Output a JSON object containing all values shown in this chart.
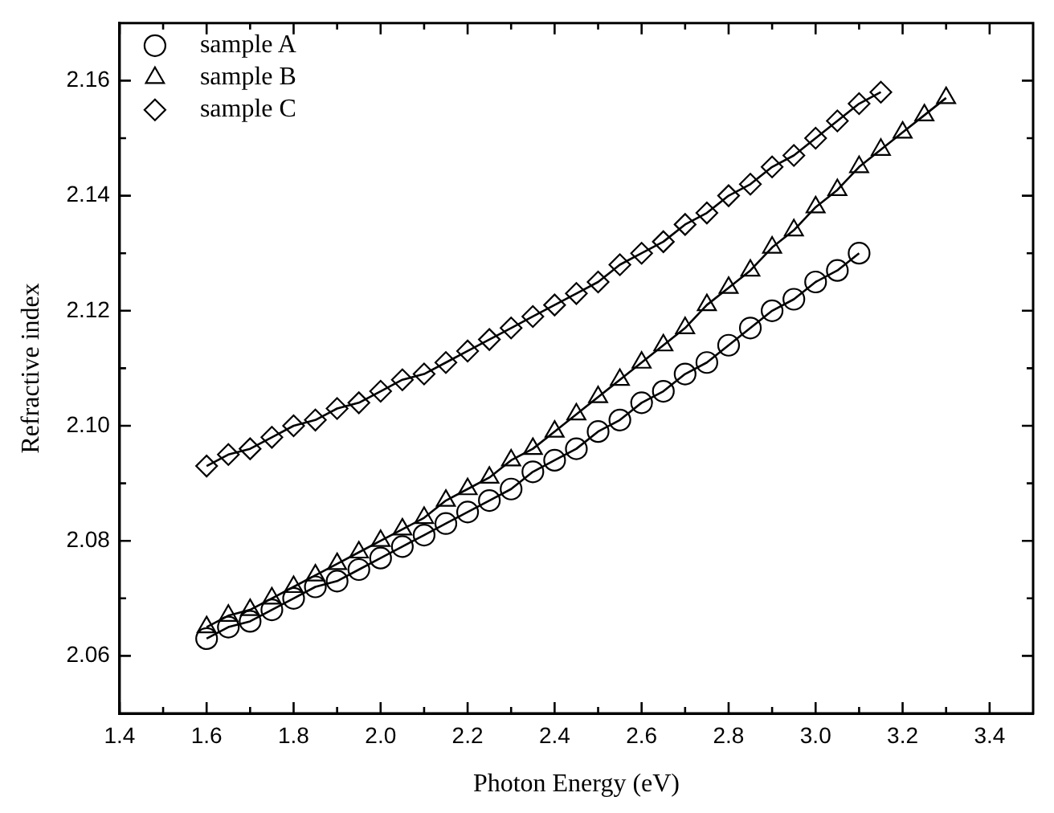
{
  "chart_data": {
    "type": "line",
    "xlabel": "Photon Energy (eV)",
    "ylabel": "Refractive index",
    "xlim": [
      1.4,
      3.5
    ],
    "xticks": [
      1.4,
      {
        "value": 1.5,
        "label": null
      },
      1.6,
      {
        "value": 1.7,
        "label": null
      },
      1.8,
      {
        "value": 1.9,
        "label": null
      },
      "2.0",
      {
        "value": 2.1,
        "label": null
      },
      2.2,
      {
        "value": 2.3,
        "label": null
      },
      2.4,
      {
        "value": 2.5,
        "label": null
      },
      2.6,
      {
        "value": 2.7,
        "label": null
      },
      2.8,
      {
        "value": 2.9,
        "label": null
      },
      "3.0",
      {
        "value": 3.1,
        "label": null
      },
      3.2,
      {
        "value": 3.3,
        "label": null
      },
      3.4
    ],
    "ylim": [
      2.05,
      2.17
    ],
    "yticks": [
      {
        "value": 2.06,
        "label": "2.06"
      },
      {
        "value": 2.07,
        "label": null
      },
      {
        "value": 2.08,
        "label": "2.08"
      },
      {
        "value": 2.09,
        "label": null
      },
      {
        "value": 2.1,
        "label": "2.10"
      },
      {
        "value": 2.11,
        "label": null
      },
      {
        "value": 2.12,
        "label": "2.12"
      },
      {
        "value": 2.13,
        "label": null
      },
      {
        "value": 2.14,
        "label": "2.14"
      },
      {
        "value": 2.15,
        "label": null
      },
      {
        "value": 2.16,
        "label": "2.16"
      }
    ],
    "grid": false,
    "legend": "top left",
    "line_style": "solid",
    "series": [
      {
        "name": "sample A",
        "color": "#000000",
        "marker": "circle",
        "x": [
          1.6,
          1.65,
          1.7,
          1.75,
          1.8,
          1.85,
          1.9,
          1.95,
          2.0,
          2.05,
          2.1,
          2.15,
          2.2,
          2.25,
          2.3,
          2.35,
          2.4,
          2.45,
          2.5,
          2.55,
          2.6,
          2.65,
          2.7,
          2.75,
          2.8,
          2.85,
          2.9,
          2.95,
          3.0,
          3.05,
          3.1
        ],
        "values": [
          2.063,
          2.065,
          2.066,
          2.068,
          2.07,
          2.072,
          2.073,
          2.075,
          2.077,
          2.079,
          2.081,
          2.083,
          2.085,
          2.087,
          2.089,
          2.092,
          2.094,
          2.096,
          2.099,
          2.101,
          2.104,
          2.106,
          2.109,
          2.111,
          2.114,
          2.117,
          2.12,
          2.122,
          2.125,
          2.127,
          2.13
        ]
      },
      {
        "name": "sample B",
        "color": "#000000",
        "marker": "triangle",
        "x": [
          1.6,
          1.65,
          1.7,
          1.75,
          1.8,
          1.85,
          1.9,
          1.95,
          2.0,
          2.05,
          2.1,
          2.15,
          2.2,
          2.25,
          2.3,
          2.35,
          2.4,
          2.45,
          2.5,
          2.55,
          2.6,
          2.65,
          2.7,
          2.75,
          2.8,
          2.85,
          2.9,
          2.95,
          3.0,
          3.05,
          3.1,
          3.15,
          3.2,
          3.25,
          3.3
        ],
        "values": [
          2.065,
          2.067,
          2.068,
          2.07,
          2.072,
          2.074,
          2.076,
          2.078,
          2.08,
          2.082,
          2.084,
          2.087,
          2.089,
          2.091,
          2.094,
          2.096,
          2.099,
          2.102,
          2.105,
          2.108,
          2.111,
          2.114,
          2.117,
          2.121,
          2.124,
          2.127,
          2.131,
          2.134,
          2.138,
          2.141,
          2.145,
          2.148,
          2.151,
          2.154,
          2.157
        ]
      },
      {
        "name": "sample C",
        "color": "#000000",
        "marker": "diamond",
        "x": [
          1.6,
          1.65,
          1.7,
          1.75,
          1.8,
          1.85,
          1.9,
          1.95,
          2.0,
          2.05,
          2.1,
          2.15,
          2.2,
          2.25,
          2.3,
          2.35,
          2.4,
          2.45,
          2.5,
          2.55,
          2.6,
          2.65,
          2.7,
          2.75,
          2.8,
          2.85,
          2.9,
          2.95,
          3.0,
          3.05,
          3.1,
          3.15
        ],
        "values": [
          2.093,
          2.095,
          2.096,
          2.098,
          2.1,
          2.101,
          2.103,
          2.104,
          2.106,
          2.108,
          2.109,
          2.111,
          2.113,
          2.115,
          2.117,
          2.119,
          2.121,
          2.123,
          2.125,
          2.128,
          2.13,
          2.132,
          2.135,
          2.137,
          2.14,
          2.142,
          2.145,
          2.147,
          2.15,
          2.153,
          2.156,
          2.158
        ]
      }
    ]
  }
}
